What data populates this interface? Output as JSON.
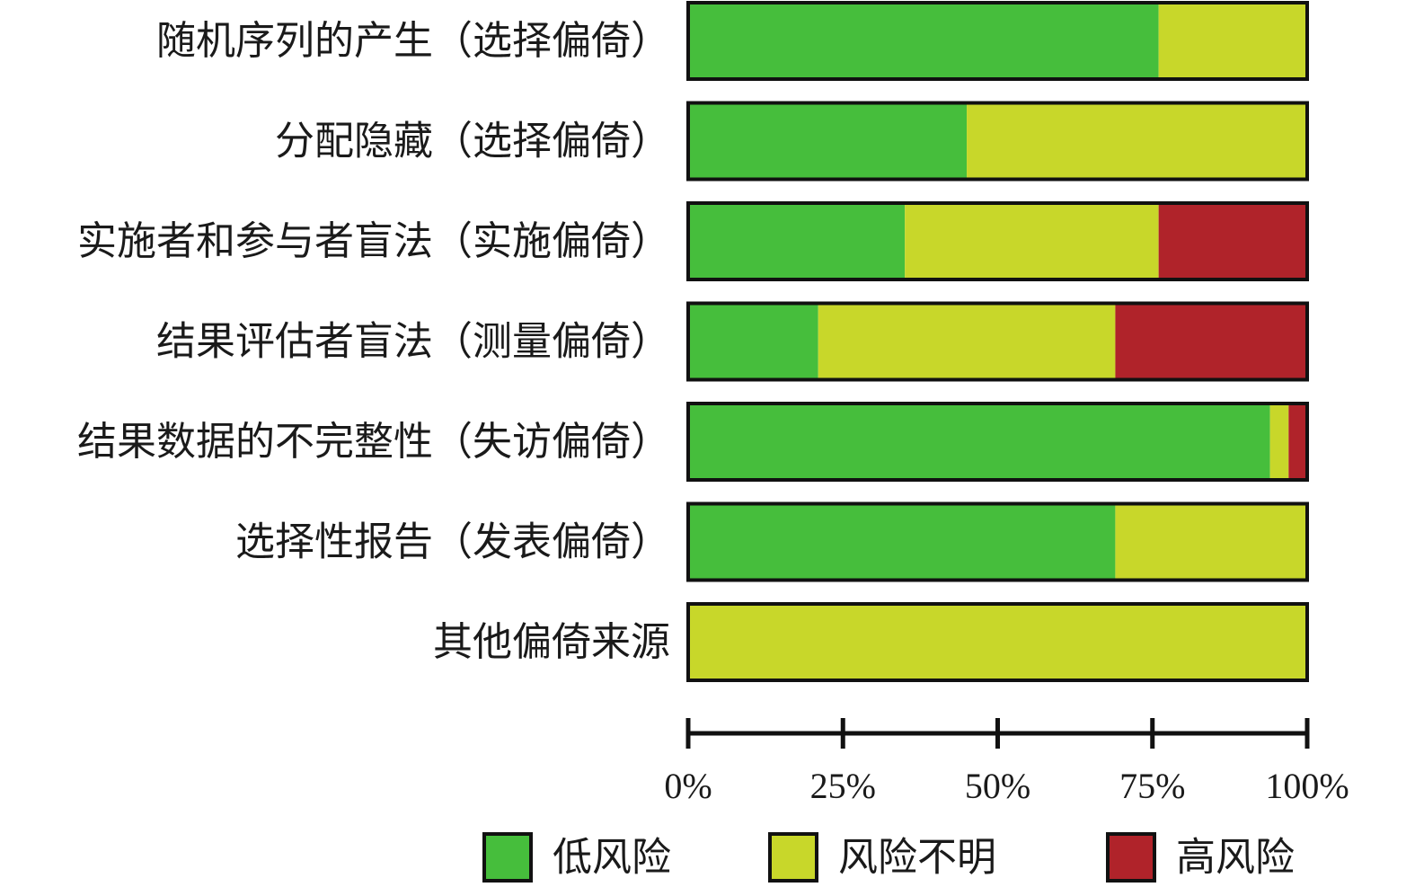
{
  "chart_data": {
    "type": "bar",
    "orientation": "horizontal",
    "stacked": true,
    "percent": true,
    "categories": [
      "随机序列的产生（选择偏倚）",
      "分配隐藏（选择偏倚）",
      "实施者和参与者盲法（实施偏倚）",
      "结果评估者盲法（测量偏倚）",
      "结果数据的不完整性（失访偏倚）",
      "选择性报告（发表偏倚）",
      "其他偏倚来源"
    ],
    "series": [
      {
        "name": "低风险",
        "color": "#46BE3C",
        "values": [
          76,
          45,
          35,
          21,
          94,
          69,
          0
        ]
      },
      {
        "name": "风险不明",
        "color": "#C8D72A",
        "values": [
          24,
          55,
          41,
          48,
          3,
          31,
          100
        ]
      },
      {
        "name": "高风险",
        "color": "#B0232A",
        "values": [
          0,
          0,
          24,
          31,
          3,
          0,
          0
        ]
      }
    ],
    "xlim": [
      0,
      100
    ],
    "xticks": [
      "0%",
      "25%",
      "50%",
      "75%",
      "100%"
    ],
    "grid": false,
    "legend": "bottom"
  }
}
